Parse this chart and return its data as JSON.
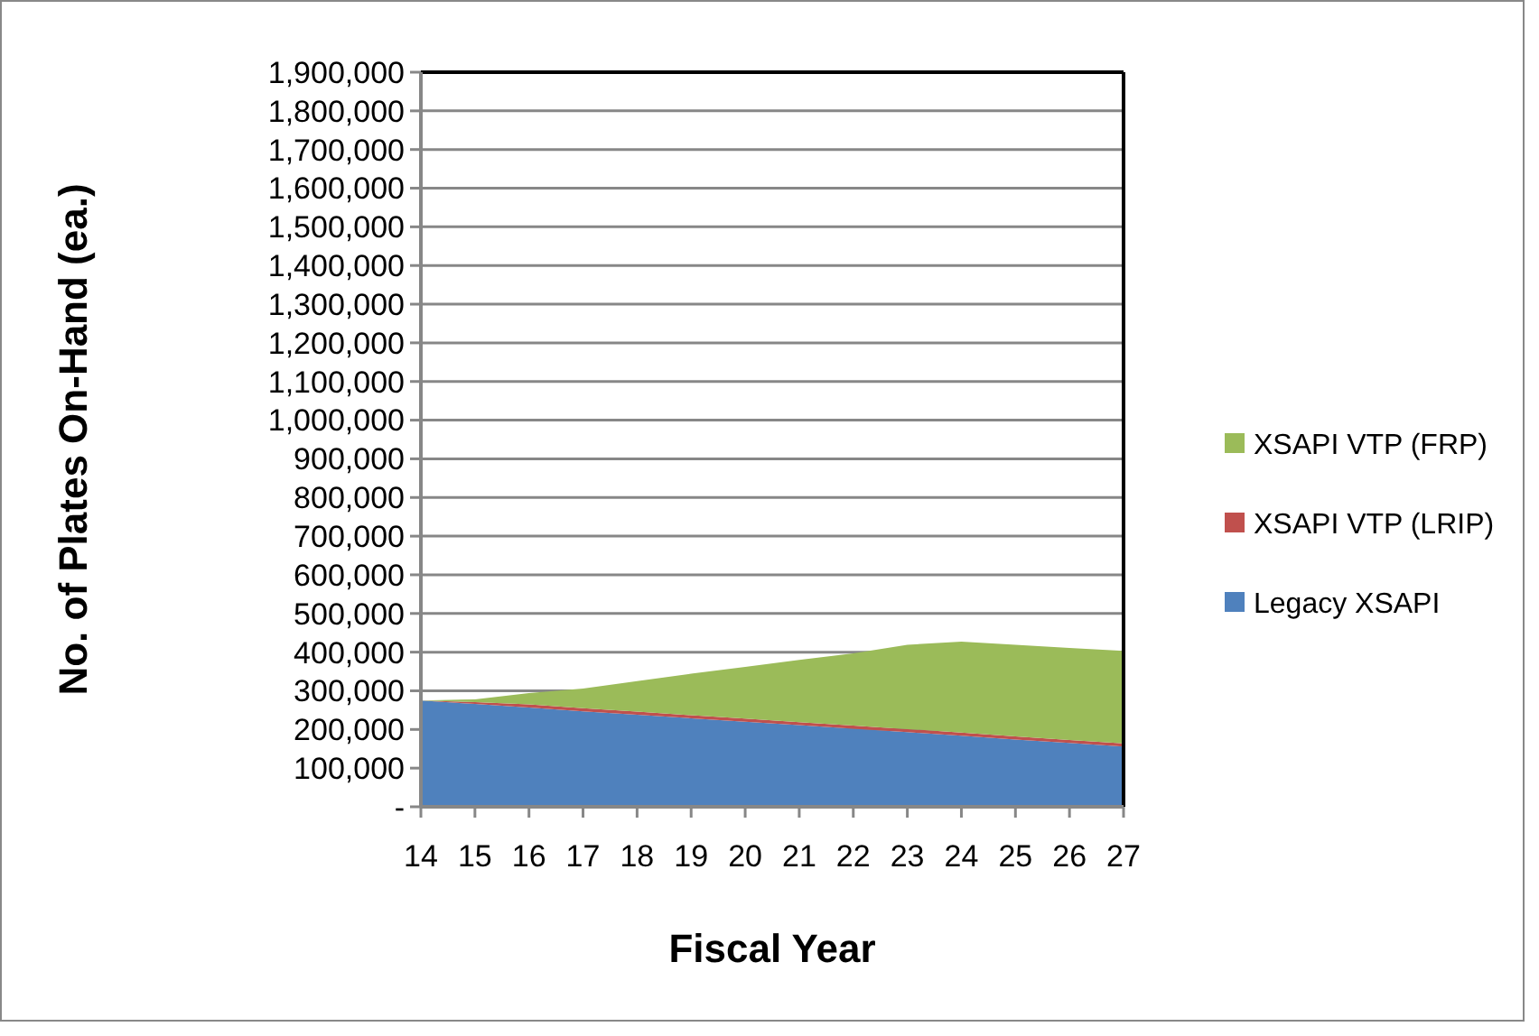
{
  "chart_data": {
    "type": "area",
    "stacked": true,
    "xlabel": "Fiscal Year",
    "ylabel": "No. of Plates On-Hand (ea.)",
    "categories": [
      "14",
      "15",
      "16",
      "17",
      "18",
      "19",
      "20",
      "21",
      "22",
      "23",
      "24",
      "25",
      "26",
      "27"
    ],
    "series": [
      {
        "name": "Legacy XSAPI",
        "color": "#4f81bd",
        "values": [
          275000,
          266000,
          257000,
          247000,
          238000,
          229000,
          220000,
          211000,
          202000,
          193000,
          184000,
          174000,
          165000,
          156000
        ]
      },
      {
        "name": "XSAPI VTP (LRIP)",
        "color": "#c0504d",
        "values": [
          0,
          5000,
          8000,
          8000,
          8000,
          8000,
          8000,
          8000,
          8000,
          8000,
          8000,
          8000,
          8000,
          8000
        ]
      },
      {
        "name": "XSAPI VTP (FRP)",
        "color": "#9bbb59",
        "values": [
          0,
          7000,
          29000,
          51000,
          79000,
          107000,
          134000,
          161000,
          187000,
          218000,
          235000,
          237000,
          238000,
          239000
        ]
      }
    ],
    "ylim": [
      0,
      1900000
    ],
    "yticks": [
      {
        "value": 0,
        "label": "-"
      },
      {
        "value": 100000,
        "label": "100,000"
      },
      {
        "value": 200000,
        "label": "200,000"
      },
      {
        "value": 300000,
        "label": "300,000"
      },
      {
        "value": 400000,
        "label": "400,000"
      },
      {
        "value": 500000,
        "label": "500,000"
      },
      {
        "value": 600000,
        "label": "600,000"
      },
      {
        "value": 700000,
        "label": "700,000"
      },
      {
        "value": 800000,
        "label": "800,000"
      },
      {
        "value": 900000,
        "label": "900,000"
      },
      {
        "value": 1000000,
        "label": "1,000,000"
      },
      {
        "value": 1100000,
        "label": "1,100,000"
      },
      {
        "value": 1200000,
        "label": "1,200,000"
      },
      {
        "value": 1300000,
        "label": "1,300,000"
      },
      {
        "value": 1400000,
        "label": "1,400,000"
      },
      {
        "value": 1500000,
        "label": "1,500,000"
      },
      {
        "value": 1600000,
        "label": "1,600,000"
      },
      {
        "value": 1700000,
        "label": "1,700,000"
      },
      {
        "value": 1800000,
        "label": "1,800,000"
      },
      {
        "value": 1900000,
        "label": "1,900,000"
      }
    ],
    "grid": "y",
    "legend": "right"
  }
}
